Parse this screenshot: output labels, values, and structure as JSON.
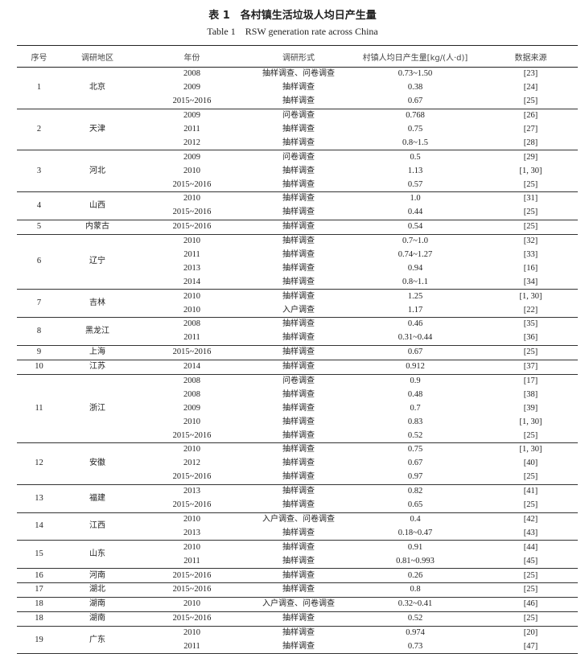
{
  "title": "表 1　各村镇生活垃圾人均日产生量",
  "subtitle": "Table 1　RSW generation rate across China",
  "headers": [
    "序号",
    "调研地区",
    "年份",
    "调研形式",
    "村镇人均日产生量[kg/(人·d)]",
    "数据来源"
  ],
  "groups": [
    {
      "no": "1",
      "region": "北京",
      "rows": [
        [
          "2008",
          "抽样调查、问卷调查",
          "0.73~1.50",
          "[23]"
        ],
        [
          "2009",
          "抽样调查",
          "0.38",
          "[24]"
        ],
        [
          "2015~2016",
          "抽样调查",
          "0.67",
          "[25]"
        ]
      ]
    },
    {
      "no": "2",
      "region": "天津",
      "rows": [
        [
          "2009",
          "问卷调查",
          "0.768",
          "[26]"
        ],
        [
          "2011",
          "抽样调查",
          "0.75",
          "[27]"
        ],
        [
          "2012",
          "抽样调查",
          "0.8~1.5",
          "[28]"
        ]
      ]
    },
    {
      "no": "3",
      "region": "河北",
      "rows": [
        [
          "2009",
          "问卷调查",
          "0.5",
          "[29]"
        ],
        [
          "2010",
          "抽样调查",
          "1.13",
          "[1, 30]"
        ],
        [
          "2015~2016",
          "抽样调查",
          "0.57",
          "[25]"
        ]
      ]
    },
    {
      "no": "4",
      "region": "山西",
      "rows": [
        [
          "2010",
          "抽样调查",
          "1.0",
          "[31]"
        ],
        [
          "2015~2016",
          "抽样调查",
          "0.44",
          "[25]"
        ]
      ]
    },
    {
      "no": "5",
      "region": "内蒙古",
      "rows": [
        [
          "2015~2016",
          "抽样调查",
          "0.54",
          "[25]"
        ]
      ]
    },
    {
      "no": "6",
      "region": "辽宁",
      "rows": [
        [
          "2010",
          "抽样调查",
          "0.7~1.0",
          "[32]"
        ],
        [
          "2011",
          "抽样调查",
          "0.74~1.27",
          "[33]"
        ],
        [
          "2013",
          "抽样调查",
          "0.94",
          "[16]"
        ],
        [
          "2014",
          "抽样调查",
          "0.8~1.1",
          "[34]"
        ]
      ]
    },
    {
      "no": "7",
      "region": "吉林",
      "rows": [
        [
          "2010",
          "抽样调查",
          "1.25",
          "[1, 30]"
        ],
        [
          "2010",
          "入户调查",
          "1.17",
          "[22]"
        ]
      ]
    },
    {
      "no": "8",
      "region": "黑龙江",
      "rows": [
        [
          "2008",
          "抽样调查",
          "0.46",
          "[35]"
        ],
        [
          "2011",
          "抽样调查",
          "0.31~0.44",
          "[36]"
        ]
      ]
    },
    {
      "no": "9",
      "region": "上海",
      "rows": [
        [
          "2015~2016",
          "抽样调查",
          "0.67",
          "[25]"
        ]
      ]
    },
    {
      "no": "10",
      "region": "江苏",
      "rows": [
        [
          "2014",
          "抽样调查",
          "0.912",
          "[37]"
        ]
      ]
    },
    {
      "no": "11",
      "region": "浙江",
      "rows": [
        [
          "2008",
          "问卷调查",
          "0.9",
          "[17]"
        ],
        [
          "2008",
          "抽样调查",
          "0.48",
          "[38]"
        ],
        [
          "2009",
          "抽样调查",
          "0.7",
          "[39]"
        ],
        [
          "2010",
          "抽样调查",
          "0.83",
          "[1, 30]"
        ],
        [
          "2015~2016",
          "抽样调查",
          "0.52",
          "[25]"
        ]
      ]
    },
    {
      "no": "12",
      "region": "安徽",
      "rows": [
        [
          "2010",
          "抽样调查",
          "0.75",
          "[1, 30]"
        ],
        [
          "2012",
          "抽样调查",
          "0.67",
          "[40]"
        ],
        [
          "2015~2016",
          "抽样调查",
          "0.97",
          "[25]"
        ]
      ]
    },
    {
      "no": "13",
      "region": "福建",
      "rows": [
        [
          "2013",
          "抽样调查",
          "0.82",
          "[41]"
        ],
        [
          "2015~2016",
          "抽样调查",
          "0.65",
          "[25]"
        ]
      ]
    },
    {
      "no": "14",
      "region": "江西",
      "rows": [
        [
          "2010",
          "入户调查、问卷调查",
          "0.4",
          "[42]"
        ],
        [
          "2013",
          "抽样调查",
          "0.18~0.47",
          "[43]"
        ]
      ]
    },
    {
      "no": "15",
      "region": "山东",
      "rows": [
        [
          "2010",
          "抽样调查",
          "0.91",
          "[44]"
        ],
        [
          "2011",
          "抽样调查",
          "0.81~0.993",
          "[45]"
        ]
      ]
    },
    {
      "no": "16",
      "region": "河南",
      "rows": [
        [
          "2015~2016",
          "抽样调查",
          "0.26",
          "[25]"
        ]
      ]
    },
    {
      "no": "17",
      "region": "湖北",
      "rows": [
        [
          "2015~2016",
          "抽样调查",
          "0.8",
          "[25]"
        ]
      ]
    },
    {
      "no": "18",
      "region": "湖南",
      "rows": [
        [
          "2010",
          "入户调查、问卷调查",
          "0.32~0.41",
          "[46]"
        ]
      ]
    },
    {
      "no": "18",
      "region": "湖南",
      "rows": [
        [
          "2015~2016",
          "抽样调查",
          "0.52",
          "[25]"
        ]
      ]
    },
    {
      "no": "19",
      "region": "广东",
      "rows": [
        [
          "2010",
          "抽样调查",
          "0.974",
          "[20]"
        ],
        [
          "2011",
          "抽样调查",
          "0.73",
          "[47]"
        ]
      ]
    }
  ]
}
